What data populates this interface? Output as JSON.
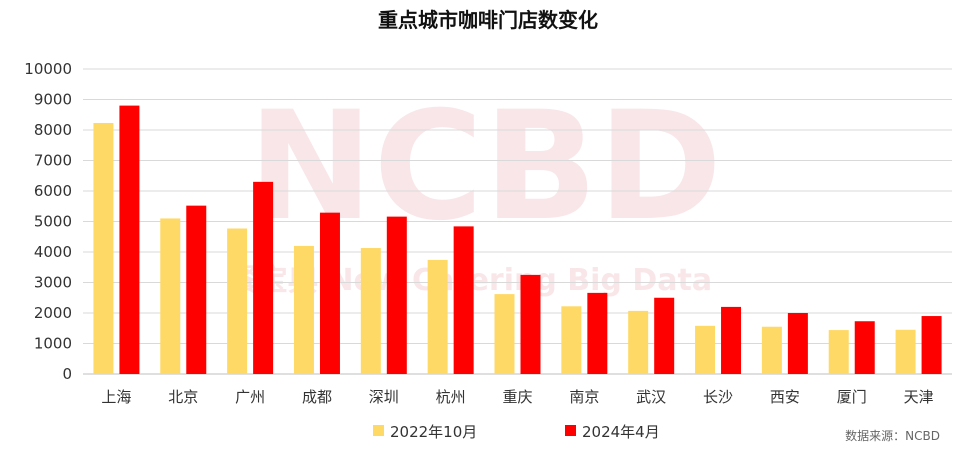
{
  "chart_data": {
    "type": "bar",
    "title": "重点城市咖啡门店数变化",
    "categories": [
      "上海",
      "北京",
      "广州",
      "成都",
      "深圳",
      "杭州",
      "重庆",
      "南京",
      "武汉",
      "长沙",
      "西安",
      "厦门",
      "天津"
    ],
    "series": [
      {
        "name": "2022年10月",
        "color": "#FFD966",
        "values": [
          8230,
          5100,
          4770,
          4200,
          4130,
          3740,
          2620,
          2220,
          2070,
          1580,
          1550,
          1440,
          1450
        ]
      },
      {
        "name": "2024年4月",
        "color": "#FF0000",
        "values": [
          8800,
          5520,
          6300,
          5290,
          5160,
          4840,
          3250,
          2660,
          2500,
          2200,
          2000,
          1730,
          1900
        ]
      }
    ],
    "ylim": [
      0,
      10000
    ],
    "yticks": [
      0,
      1000,
      2000,
      3000,
      4000,
      5000,
      6000,
      7000,
      8000,
      9000,
      10000
    ],
    "xlabel": "",
    "ylabel": "",
    "grid": true,
    "legend_position": "bottom-center",
    "source": "数据来源：NCBD",
    "watermark": {
      "main": "NCBD",
      "sub": "餐宝典 New Catering Big Data"
    }
  }
}
